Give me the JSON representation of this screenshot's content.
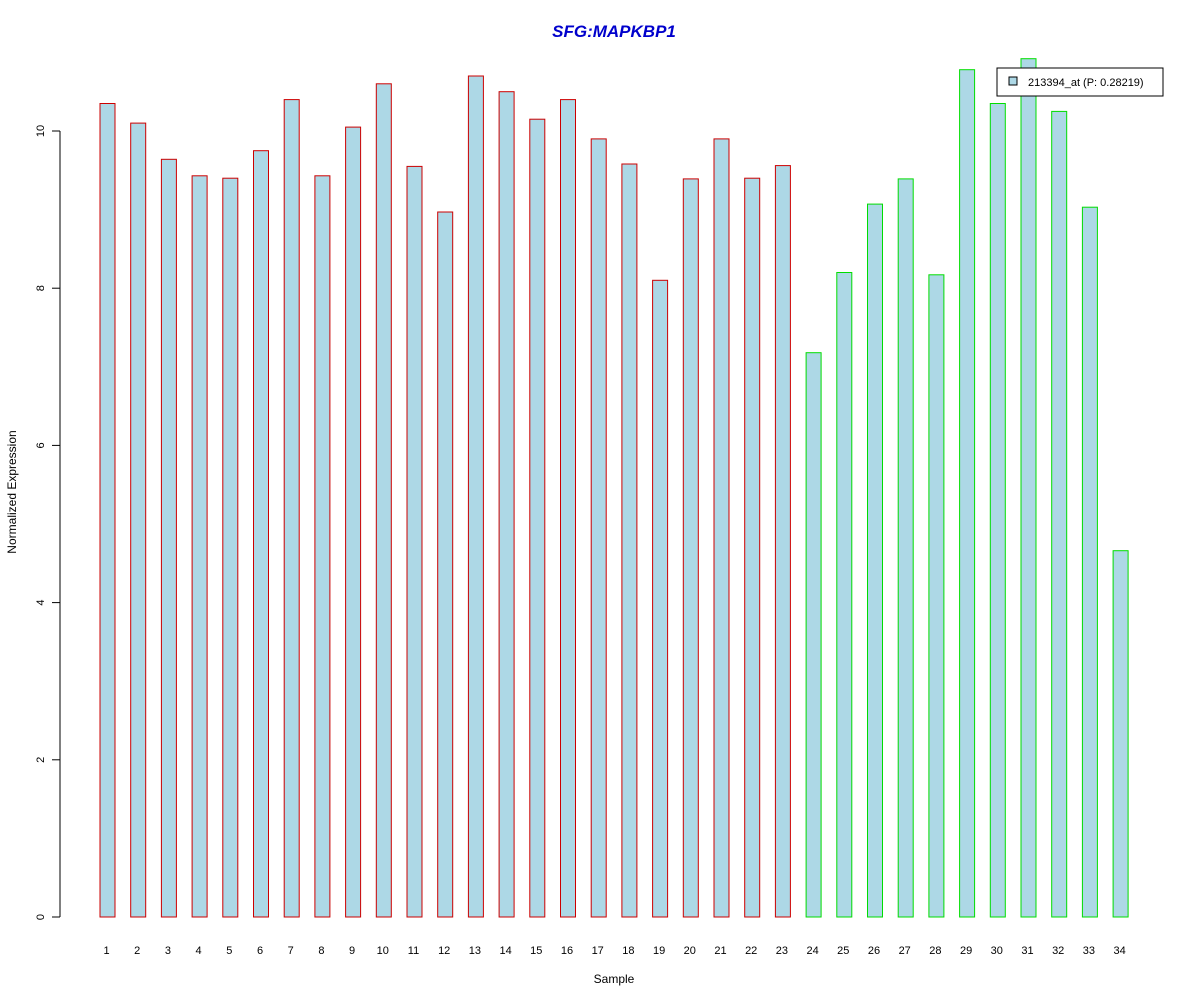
{
  "chart_data": {
    "type": "bar",
    "title": "SFG:MAPKBP1",
    "xlabel": "Sample",
    "ylabel": "Normalized Expression",
    "categories": [
      "1",
      "2",
      "3",
      "4",
      "5",
      "6",
      "7",
      "8",
      "9",
      "10",
      "11",
      "12",
      "13",
      "14",
      "15",
      "16",
      "17",
      "18",
      "19",
      "20",
      "21",
      "22",
      "23",
      "24",
      "25",
      "26",
      "27",
      "28",
      "29",
      "30",
      "31",
      "32",
      "33",
      "34"
    ],
    "series": [
      {
        "name": "213394_at (P: 0.28219)",
        "values": [
          10.35,
          10.1,
          9.64,
          9.43,
          9.4,
          9.75,
          10.4,
          9.43,
          10.05,
          10.6,
          9.55,
          8.97,
          10.7,
          10.5,
          10.15,
          10.4,
          9.9,
          9.58,
          8.1,
          9.39,
          9.9,
          9.4,
          9.56,
          7.18,
          8.2,
          9.07,
          9.39,
          8.17,
          10.78,
          10.35,
          10.92,
          10.25,
          9.03,
          4.66
        ]
      }
    ],
    "groups": [
      {
        "samples_from": 1,
        "samples_to": 23,
        "border_color": "#cc0000"
      },
      {
        "samples_from": 24,
        "samples_to": 34,
        "border_color": "#00dd00"
      }
    ],
    "colors": {
      "title": "#0000cc",
      "bar_fill": "#add8e6",
      "axis": "#000000"
    },
    "yticks": [
      0,
      2,
      4,
      6,
      8,
      10
    ],
    "ylim": [
      0,
      11
    ],
    "legend": {
      "label": "213394_at (P: 0.28219)",
      "position": "top-right"
    }
  }
}
